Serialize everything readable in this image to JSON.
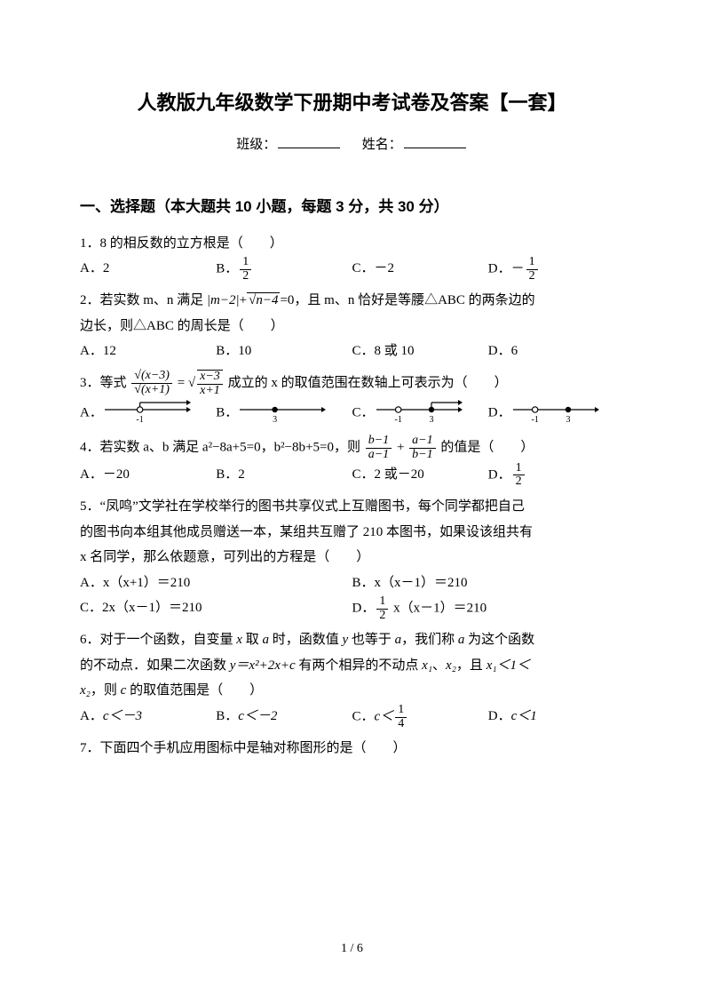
{
  "title": "人教版九年级数学下册期中考试卷及答案【一套】",
  "info": {
    "class_label": "班级：",
    "name_label": "姓名："
  },
  "section1_heading": "一、选择题（本大题共 10 小题，每题 3 分，共 30 分）",
  "q1": {
    "stem": "1．8 的相反数的立方根是（　　）",
    "A": "A．2",
    "B": "B．",
    "C": "C．－2",
    "D": "D．",
    "B_frac": {
      "num": "1",
      "den": "2"
    },
    "D_prefix": "－",
    "D_frac": {
      "num": "1",
      "den": "2"
    }
  },
  "q2": {
    "stem_a": "2．若实数 m、n 满足 ",
    "abs": "|m−2|",
    "plus": "+",
    "sqrt_inner": "n−4",
    "eq": "=0",
    "stem_b": "，且 m、n 恰好是等腰△ABC 的两条边的",
    "stem_c": "边长，则△ABC 的周长是（　　）",
    "A": "A．12",
    "B": "B．10",
    "C": "C．8 或 10",
    "D": "D．6"
  },
  "q3": {
    "prefix": "3．等式 ",
    "lhs_top": "√(x−3)",
    "lhs_bot": "√(x+1)",
    "eq": "=",
    "rhs_top": "x−3",
    "rhs_bot": "x+1",
    "suffix": " 成立的 x 的取值范围在数轴上可表示为（　　）",
    "A": "A．",
    "B": "B．",
    "C": "C．",
    "D": "D．",
    "nlA": {
      "ticks": [
        -1
      ],
      "open": [
        -1
      ],
      "closed": [],
      "ray_from": -1,
      "ray_at_top": true
    },
    "nlB": {
      "ticks": [
        3
      ],
      "open": [],
      "closed": [
        3
      ],
      "ray_from": 3,
      "ray_at_top": false
    },
    "nlC": {
      "ticks": [
        -1,
        3
      ],
      "open": [
        -1
      ],
      "closed": [
        3
      ],
      "ray_from": 3,
      "ray_at_top": true
    },
    "nlD": {
      "ticks": [
        -1,
        3
      ],
      "open": [
        -1
      ],
      "closed": [
        3
      ],
      "ray_from": 3,
      "ray_at_top": false
    }
  },
  "q4": {
    "stem_a": "4．若实数 a、b 满足 a²−8a+5=0，b²−8b+5=0，则 ",
    "f1": {
      "num": "b−1",
      "den": "a−1"
    },
    "plus": "+",
    "f2": {
      "num": "a−1",
      "den": "b−1"
    },
    "stem_b": " 的值是（　　）",
    "A": "A．－20",
    "B": "B．2",
    "C": "C．2 或－20",
    "D": "D．",
    "D_frac": {
      "num": "1",
      "den": "2"
    }
  },
  "q5": {
    "l1": "5．“凤鸣”文学社在学校举行的图书共享仪式上互赠图书，每个同学都把自己",
    "l2": "的图书向本组其他成员赠送一本，某组共互赠了 210 本图书，如果设该组共有",
    "l3": "x 名同学，那么依题意，可列出的方程是（　　）",
    "A": "A．x（x+1）＝210",
    "B": "B．x（x－1）＝210",
    "C": "C．2x（x－1）＝210",
    "D_pre": "D．",
    "D_frac": {
      "num": "1",
      "den": "2"
    },
    "D_post": " x（x－1）＝210"
  },
  "q6": {
    "l1_a": "6．对于一个函数，自变量 ",
    "x": "x",
    "l1_b": " 取 ",
    "a": "a",
    "l1_c": " 时，函数值 ",
    "y": "y",
    "l1_d": " 也等于 ",
    "l1_e": "，我们称 ",
    "l1_f": " 为这个函数",
    "l2_a": "的不动点．如果二次函数 ",
    "eq": "y＝x²+2x+c",
    "l2_b": " 有两个相异的不动点 ",
    "x1": "x₁",
    "sep": "、",
    "x2": "x₂",
    "l2_c": "，且 ",
    "ineq": "x₁＜1＜",
    "l3_a": "x₂",
    "l3_b": "，则 ",
    "c": "c",
    "l3_c": " 的取值范围是（　　）",
    "A": "A．",
    "A_expr": "c＜－3",
    "B": "B．",
    "B_expr": "c＜－2",
    "C": "C．",
    "C_expr_pre": "c＜",
    "C_frac": {
      "num": "1",
      "den": "4"
    },
    "D": "D．",
    "D_expr": "c＜1"
  },
  "q7": {
    "stem": "7．下面四个手机应用图标中是轴对称图形的是（　　）"
  },
  "pagenum": "1 / 6",
  "svg_colors": {
    "line": "#000000",
    "fill_open": "#ffffff",
    "fill_closed": "#000000"
  }
}
